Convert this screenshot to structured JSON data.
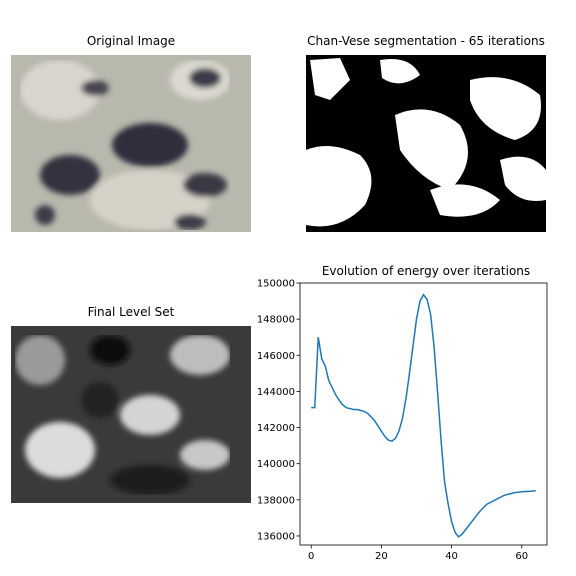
{
  "chart_data": [
    {
      "type": "image",
      "title": "Original Image"
    },
    {
      "type": "image",
      "title": "Chan-Vese segmentation - 65 iterations"
    },
    {
      "type": "image",
      "title": "Final Level Set"
    },
    {
      "type": "line",
      "title": "Evolution of energy over iterations",
      "x": [
        0,
        1,
        2,
        3,
        4,
        5,
        6,
        7,
        8,
        9,
        10,
        11,
        12,
        13,
        14,
        15,
        16,
        17,
        18,
        19,
        20,
        21,
        22,
        23,
        24,
        25,
        26,
        27,
        28,
        29,
        30,
        31,
        32,
        33,
        34,
        35,
        36,
        37,
        38,
        39,
        40,
        41,
        42,
        43,
        44,
        45,
        46,
        47,
        48,
        49,
        50,
        51,
        52,
        53,
        54,
        55,
        56,
        57,
        58,
        59,
        60,
        61,
        62,
        63,
        64
      ],
      "series": [
        {
          "color": "#1f77b4",
          "values": [
            143100,
            143100,
            147000,
            145800,
            145400,
            144600,
            144200,
            143800,
            143500,
            143250,
            143100,
            143050,
            143000,
            143000,
            142950,
            142900,
            142800,
            142600,
            142400,
            142100,
            141800,
            141500,
            141300,
            141250,
            141400,
            141800,
            142500,
            143600,
            145000,
            146500,
            148000,
            149000,
            149350,
            149100,
            148300,
            146500,
            144000,
            141300,
            139000,
            137800,
            136800,
            136200,
            135950,
            136100,
            136350,
            136600,
            136850,
            137100,
            137350,
            137550,
            137750,
            137850,
            137950,
            138050,
            138150,
            138250,
            138300,
            138350,
            138400,
            138420,
            138450,
            138460,
            138470,
            138480,
            138500
          ]
        }
      ],
      "xlim": [
        -3.2,
        67.2
      ],
      "ylim": [
        135500,
        150000
      ],
      "xticks": [
        0,
        20,
        40,
        60
      ],
      "yticks": [
        136000,
        138000,
        140000,
        142000,
        144000,
        146000,
        148000,
        150000
      ]
    }
  ]
}
